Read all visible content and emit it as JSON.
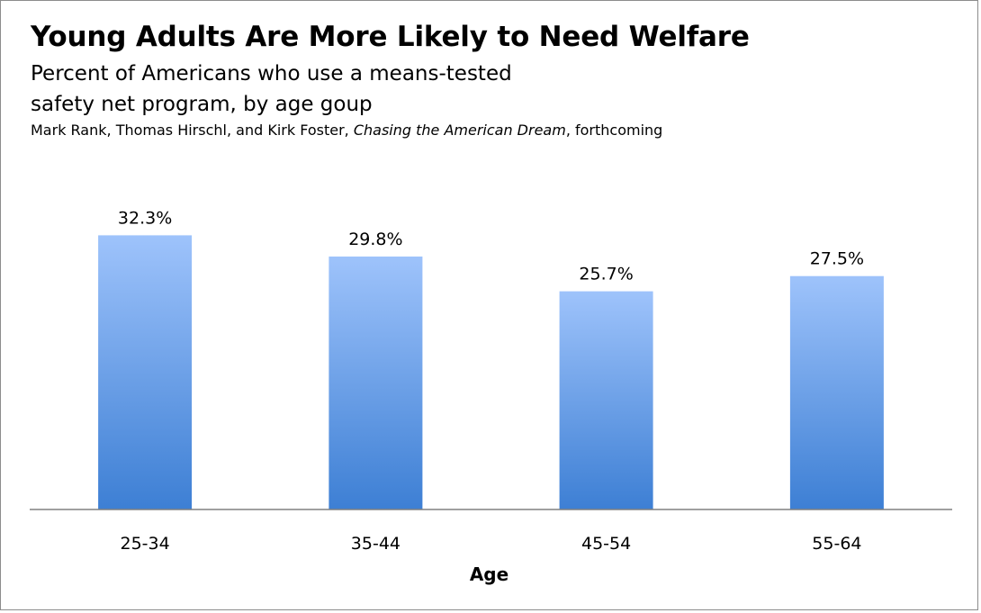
{
  "header": {
    "title": "Young Adults Are More Likely to Need Welfare",
    "subtitle_line1": "Percent of Americans who use a means-tested",
    "subtitle_line2": "safety net program, by age goup",
    "source_authors": "Mark Rank, Thomas Hirschl, and Kirk Foster, ",
    "source_book": "Chasing the American Dream",
    "source_suffix": ", forthcoming"
  },
  "colors": {
    "bar_top": "#9ec3fb",
    "bar_bottom": "#3d7fd4",
    "axis": "#808080",
    "frame": "#8c8c8c"
  },
  "chart_data": {
    "type": "bar",
    "title": "Young Adults Are More Likely to Need Welfare",
    "xlabel": "Age",
    "ylabel": "",
    "categories": [
      "25-34",
      "35-44",
      "45-54",
      "55-64"
    ],
    "values": [
      32.3,
      29.8,
      25.7,
      27.5
    ],
    "value_labels": [
      "32.3%",
      "29.8%",
      "25.7%",
      "27.5%"
    ],
    "ylim": [
      0,
      40
    ],
    "grid": false,
    "legend": "none"
  }
}
